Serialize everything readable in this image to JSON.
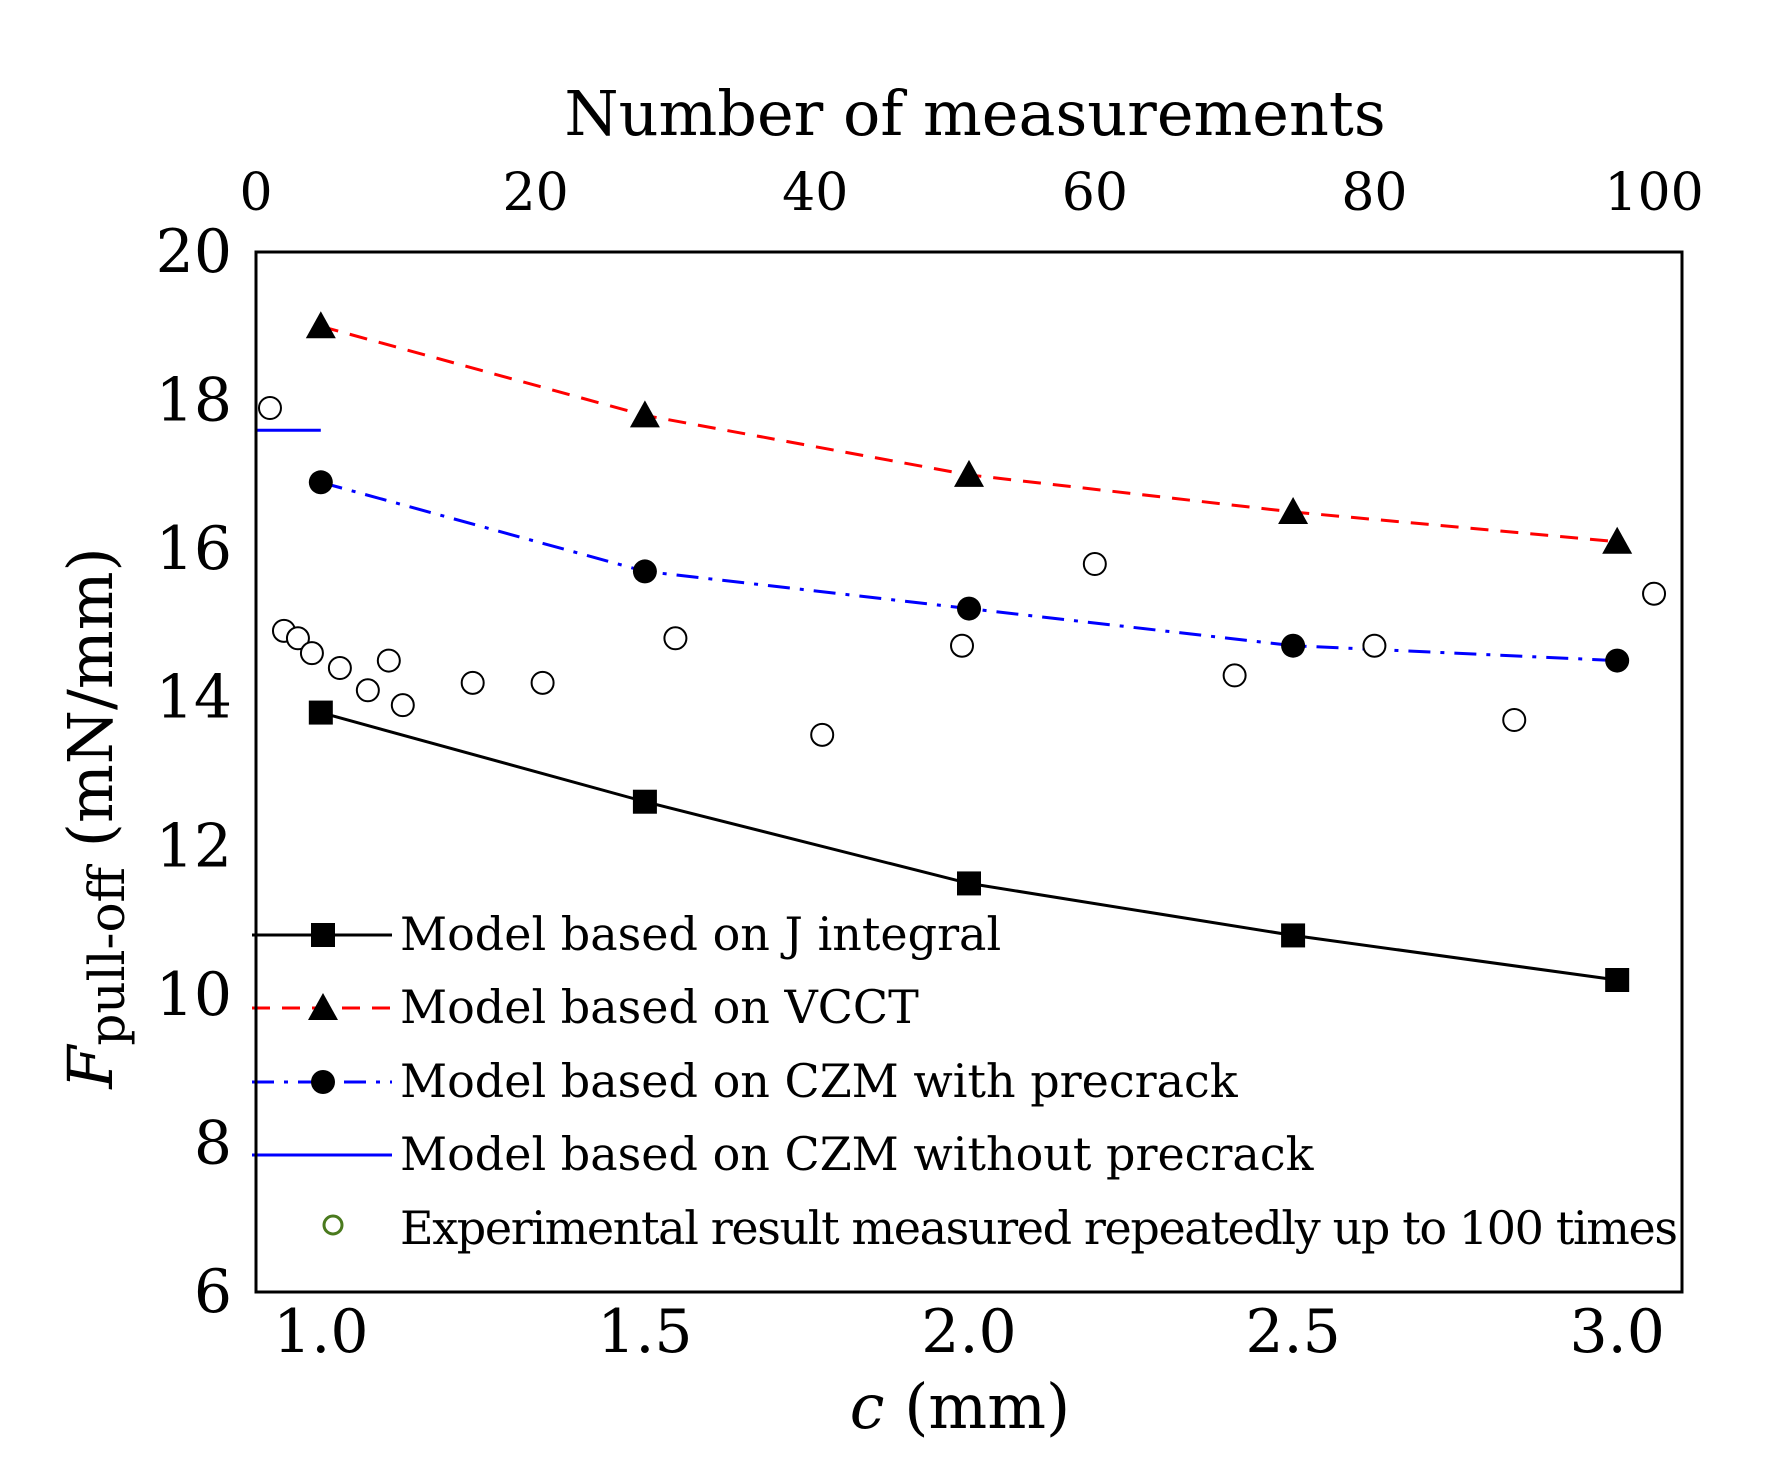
{
  "chart_data": {
    "type": "scatter",
    "title": "",
    "xlabel": "c (mm)",
    "xlabel_var": "c",
    "xlabel_unit": " (mm)",
    "ylabel": "Fpull-off (mN/mm)",
    "ylabel_var": "F",
    "ylabel_sub": "pull-off",
    "ylabel_unit": " (mN/mm)",
    "x2label": "Number of measurements",
    "xlim": [
      0.9,
      3.1
    ],
    "ylim": [
      6,
      20
    ],
    "x2lim": [
      0,
      102
    ],
    "xticks": [
      "1.0",
      "1.5",
      "2.0",
      "2.5",
      "3.0"
    ],
    "yticks": [
      "6",
      "8",
      "10",
      "12",
      "14",
      "16",
      "18",
      "20"
    ],
    "x2ticks": [
      "0",
      "20",
      "40",
      "60",
      "80",
      "100"
    ],
    "grid": false,
    "legend_position": "bottom-left",
    "colors": {
      "j_integral": "#000000",
      "vcct": "#ff0000",
      "czm_pre": "#0000ff",
      "czm_nopre": "#0000ff",
      "experimental": "#4a7a1e"
    },
    "series": [
      {
        "key": "j_integral",
        "name": "Model based on J integral",
        "x": [
          1.0,
          1.5,
          2.0,
          2.5,
          3.0
        ],
        "y": [
          13.8,
          12.6,
          11.5,
          10.8,
          10.2
        ],
        "marker": "square",
        "line": "solid"
      },
      {
        "key": "vcct",
        "name": "Model based on VCCT",
        "x": [
          1.0,
          1.5,
          2.0,
          2.5,
          3.0
        ],
        "y": [
          19.0,
          17.8,
          17.0,
          16.5,
          16.1
        ],
        "marker": "triangle",
        "line": "dashed"
      },
      {
        "key": "czm_pre",
        "name": "Model based on CZM with precrack",
        "x": [
          1.0,
          1.5,
          2.0,
          2.5,
          3.0
        ],
        "y": [
          16.9,
          15.7,
          15.2,
          14.7,
          14.5
        ],
        "marker": "circle",
        "line": "dashdot"
      },
      {
        "key": "czm_nopre",
        "name": "Model based on CZM without precrack",
        "x": [
          0.9,
          1.0
        ],
        "y": [
          17.6,
          17.6
        ],
        "marker": "none",
        "line": "solid"
      },
      {
        "key": "experimental",
        "name": "Experimental result measured repeatedly up to 100 times",
        "axis": "x2",
        "x": [
          1,
          2,
          3,
          4,
          6,
          8,
          9.5,
          10.5,
          15.5,
          20.5,
          30,
          40.5,
          50.5,
          60,
          70,
          80,
          90,
          100
        ],
        "y": [
          17.9,
          14.9,
          14.8,
          14.6,
          14.4,
          14.1,
          14.5,
          13.9,
          14.2,
          14.2,
          14.8,
          13.5,
          14.7,
          15.8,
          14.3,
          14.7,
          13.7,
          15.4
        ],
        "marker": "open-circle",
        "line": "none"
      }
    ]
  }
}
